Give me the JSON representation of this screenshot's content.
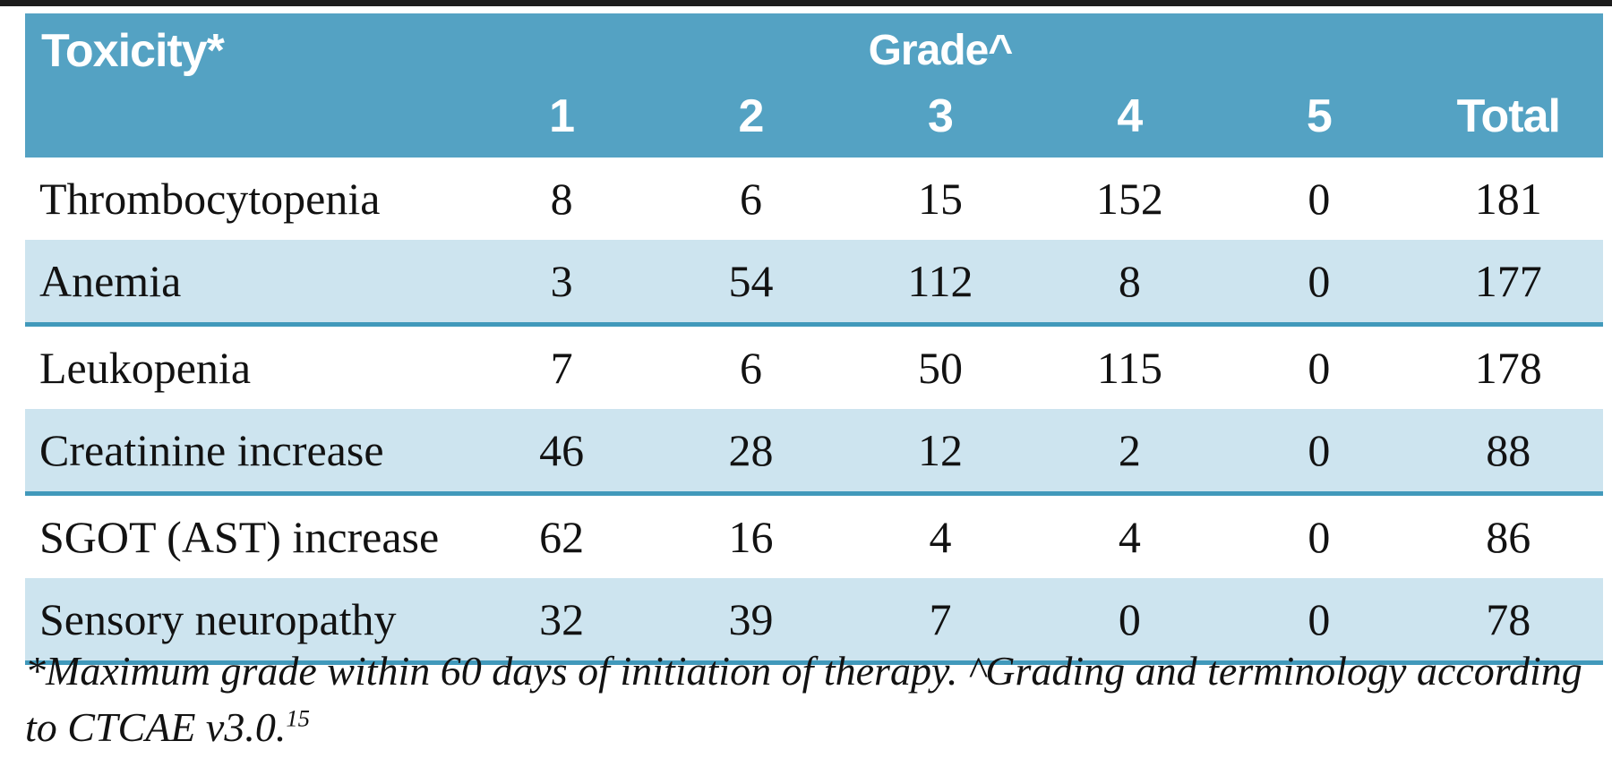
{
  "table": {
    "row_header_label": "Toxicity*",
    "col_group_header": "Grade^",
    "grade_columns": [
      "1",
      "2",
      "3",
      "4",
      "5",
      "Total"
    ],
    "rows": [
      {
        "label": "Thrombocytopenia",
        "values": [
          "8",
          "6",
          "15",
          "152",
          "0",
          "181"
        ]
      },
      {
        "label": "Anemia",
        "values": [
          "3",
          "54",
          "112",
          "8",
          "0",
          "177"
        ]
      },
      {
        "label": "Leukopenia",
        "values": [
          "7",
          "6",
          "50",
          "115",
          "0",
          "178"
        ]
      },
      {
        "label": "Creatinine increase",
        "values": [
          "46",
          "28",
          "12",
          "2",
          "0",
          "88"
        ]
      },
      {
        "label": "SGOT (AST) increase",
        "values": [
          "62",
          "16",
          "4",
          "4",
          "0",
          "86"
        ]
      },
      {
        "label": "Sensory neuropathy",
        "values": [
          "32",
          "39",
          "7",
          "0",
          "0",
          "78"
        ]
      }
    ]
  },
  "footnote": {
    "text": "*Maximum grade within 60 days of initiation of therapy. ^Grading and terminology according to CTCAE v3.0.",
    "reference": "15"
  },
  "colors": {
    "header_bg": "#54a2c3",
    "shaded_row_bg": "#cde4ef",
    "rule_teal": "#4199bb",
    "top_rule": "#1c1c1c",
    "body_text": "#121212",
    "header_text": "#ffffff"
  }
}
